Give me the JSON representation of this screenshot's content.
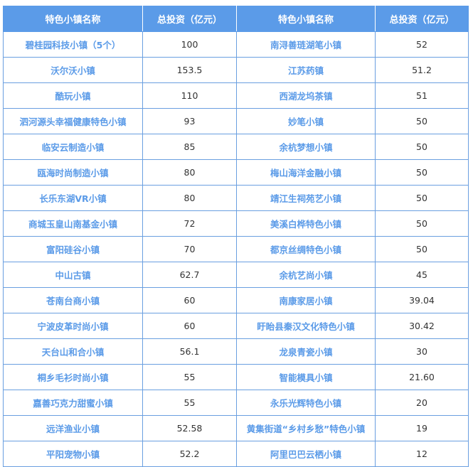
{
  "colors": {
    "header_bg": "#5b9be8",
    "name_text": "#5b9be8",
    "border": "#6a9fe0"
  },
  "headers": [
    "特色小镇名称",
    "总投资（亿元）",
    "特色小镇名称",
    "总投资（亿元）"
  ],
  "rows": [
    [
      "碧桂园科技小镇（5个）",
      "100",
      "南浔善琏湖笔小镇",
      "52"
    ],
    [
      "沃尔沃小镇",
      "153.5",
      "江苏药镇",
      "51.2"
    ],
    [
      "酷玩小镇",
      "110",
      "西湖龙坞茶镇",
      "51"
    ],
    [
      "泗河源头幸福健康特色小镇",
      "93",
      "妙笔小镇",
      "50"
    ],
    [
      "临安云制造小镇",
      "85",
      "余杭梦想小镇",
      "50"
    ],
    [
      "瓯海时尚制造小镇",
      "80",
      "梅山海洋金融小镇",
      "50"
    ],
    [
      "长乐东湖VR小镇",
      "80",
      "靖江生祠苑艺小镇",
      "50"
    ],
    [
      "商城玉皇山南基金小镇",
      "72",
      "美溪白桦特色小镇",
      "50"
    ],
    [
      "富阳硅谷小镇",
      "70",
      "都京丝绸特色小镇",
      "50"
    ],
    [
      "中山古镇",
      "62.7",
      "余杭艺尚小镇",
      "45"
    ],
    [
      "苍南台商小镇",
      "60",
      "南康家居小镇",
      "39.04"
    ],
    [
      "宁波皮革时尚小镇",
      "60",
      "盱眙县秦汉文化特色小镇",
      "30.42"
    ],
    [
      "天台山和合小镇",
      "56.1",
      "龙泉青瓷小镇",
      "30"
    ],
    [
      "桐乡毛衫时尚小镇",
      "55",
      "智能模具小镇",
      "21.60"
    ],
    [
      "嘉善巧克力甜蜜小镇",
      "55",
      "永乐光辉特色小镇",
      "20"
    ],
    [
      "远洋渔业小镇",
      "52.58",
      "黄集街道“乡村乡愁”特色小镇",
      "19"
    ],
    [
      "平阳宠物小镇",
      "52.2",
      "阿里巴巴云栖小镇",
      "12"
    ]
  ]
}
